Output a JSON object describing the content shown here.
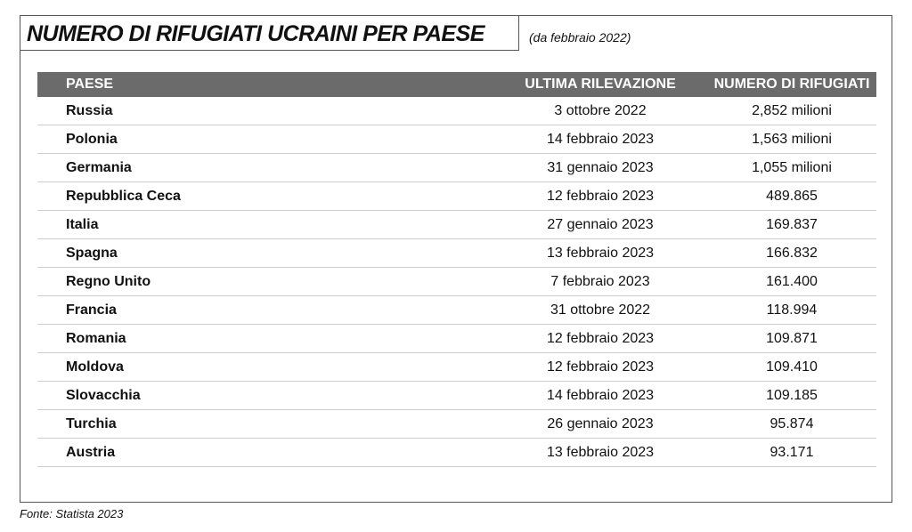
{
  "header": {
    "title": "NUMERO DI RIFUGIATI UCRAINI PER PAESE",
    "subtitle": "(da febbraio 2022)"
  },
  "table": {
    "columns": [
      "PAESE",
      "ULTIMA RILEVAZIONE",
      "NUMERO DI RIFUGIATI"
    ],
    "rows": [
      [
        "Russia",
        "3 ottobre 2022",
        "2,852 milioni"
      ],
      [
        "Polonia",
        "14 febbraio 2023",
        "1,563 milioni"
      ],
      [
        "Germania",
        "31 gennaio 2023",
        "1,055 milioni"
      ],
      [
        "Repubblica Ceca",
        "12 febbraio 2023",
        "489.865"
      ],
      [
        "Italia",
        "27 gennaio 2023",
        "169.837"
      ],
      [
        "Spagna",
        "13 febbraio 2023",
        "166.832"
      ],
      [
        "Regno Unito",
        "7 febbraio 2023",
        "161.400"
      ],
      [
        "Francia",
        "31 ottobre 2022",
        "118.994"
      ],
      [
        "Romania",
        "12 febbraio 2023",
        "109.871"
      ],
      [
        "Moldova",
        "12 febbraio 2023",
        "109.410"
      ],
      [
        "Slovacchia",
        "14 febbraio 2023",
        "109.185"
      ],
      [
        "Turchia",
        "26 gennaio 2023",
        "95.874"
      ],
      [
        "Austria",
        "13 febbraio 2023",
        "93.171"
      ]
    ]
  },
  "footer": {
    "source": "Fonte: Statista 2023"
  }
}
